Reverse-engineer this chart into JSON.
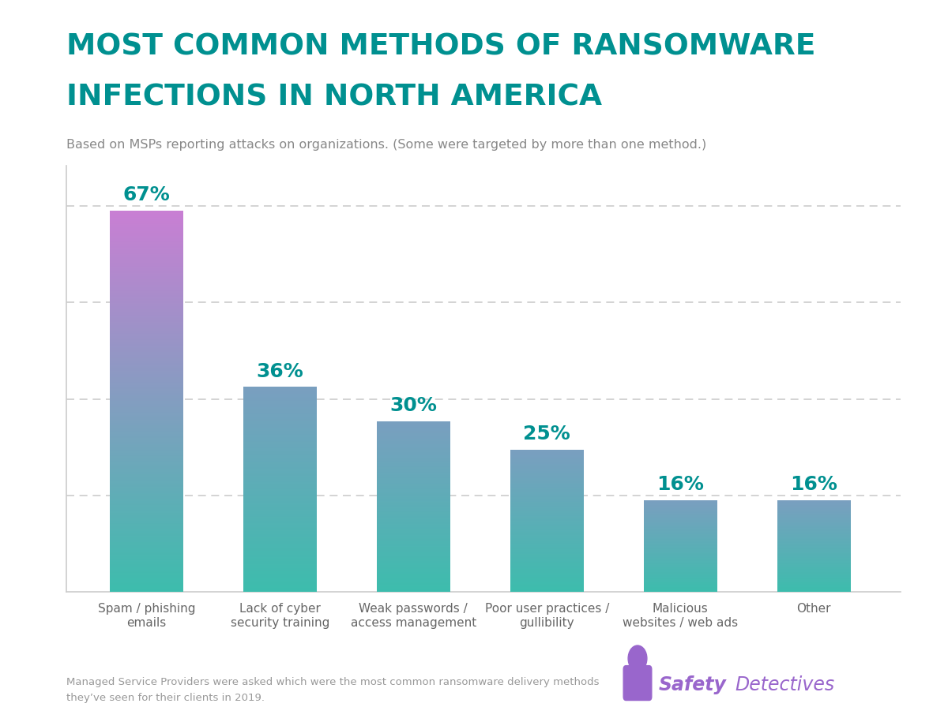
{
  "title_line1": "MOST COMMON METHODS OF RANSOMWARE",
  "title_line2": "INFECTIONS IN NORTH AMERICA",
  "subtitle": "Based on MSPs reporting attacks on organizations. (Some were targeted by more than one method.)",
  "footnote_line1": "Managed Service Providers were asked which were the most common ransomware delivery methods",
  "footnote_line2": "they’ve seen for their clients in 2019.",
  "categories": [
    "Spam / phishing\nemails",
    "Lack of cyber\nsecurity training",
    "Weak passwords /\naccess management",
    "Poor user practices /\ngullibility",
    "Malicious\nwebsites / web ads",
    "Other"
  ],
  "values": [
    67,
    36,
    30,
    25,
    16,
    16
  ],
  "value_labels": [
    "67%",
    "36%",
    "30%",
    "25%",
    "16%",
    "16%"
  ],
  "title_color": "#009090",
  "subtitle_color": "#888888",
  "value_label_color": "#009090",
  "bar_teal_color": "#3dbdad",
  "bar_purple_color": "#c97fd4",
  "bar_mid_color": "#7a9fc0",
  "axis_color": "#cccccc",
  "grid_color": "#cccccc",
  "background_color": "#ffffff",
  "footnote_color": "#999999",
  "safety_color": "#9966cc",
  "ylim": [
    0,
    75
  ],
  "grid_values": [
    17,
    34,
    51,
    68
  ]
}
